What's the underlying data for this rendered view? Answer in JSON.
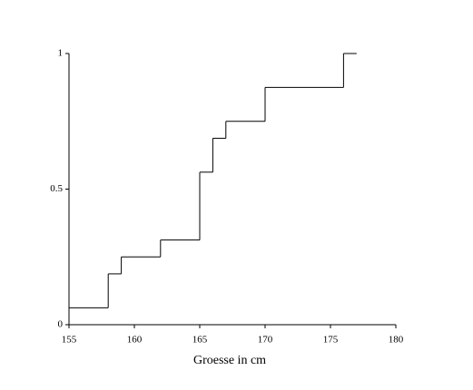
{
  "chart_data": {
    "type": "line",
    "step": "post",
    "x": [
      155,
      158,
      159,
      162,
      165,
      166,
      167,
      170,
      176,
      177
    ],
    "values": [
      0.0625,
      0.1875,
      0.25,
      0.3125,
      0.5625,
      0.6875,
      0.75,
      0.875,
      1,
      1
    ],
    "color": "#000000",
    "xlabel": "Groesse in cm",
    "xlim": [
      155,
      180
    ],
    "xticks": [
      155,
      160,
      165,
      170,
      175,
      180
    ],
    "ylim": [
      0,
      1
    ],
    "yticks": [
      0,
      0.5,
      1
    ],
    "grid": false
  }
}
